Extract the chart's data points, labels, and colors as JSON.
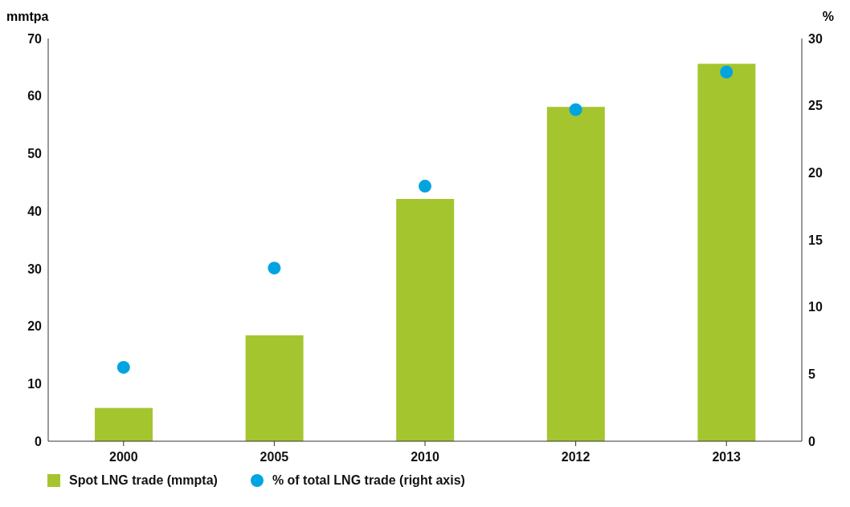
{
  "chart_data": {
    "type": "bar",
    "ylabel": "mmtpa",
    "y2label": "%",
    "categories": [
      "2000",
      "2005",
      "2010",
      "2012",
      "2013"
    ],
    "series": [
      {
        "name": "Spot LNG trade (mmpta)",
        "color": "#a5c52f",
        "values": [
          5.8,
          18.4,
          42.1,
          58.1,
          65.6
        ]
      },
      {
        "name": "% of total LNG trade (right axis)",
        "type": "scatter",
        "axis": "y2",
        "color": "#00a4e0",
        "values": [
          5.5,
          12.9,
          19.0,
          24.7,
          27.5
        ]
      }
    ],
    "ylim": [
      0,
      70
    ],
    "yticks": [
      0,
      10,
      20,
      30,
      40,
      50,
      60,
      70
    ],
    "y2lim": [
      0,
      30
    ],
    "y2ticks": [
      0,
      5,
      10,
      15,
      20,
      25,
      30
    ],
    "grid": false,
    "legend": "bottom left",
    "marker": "circle"
  }
}
